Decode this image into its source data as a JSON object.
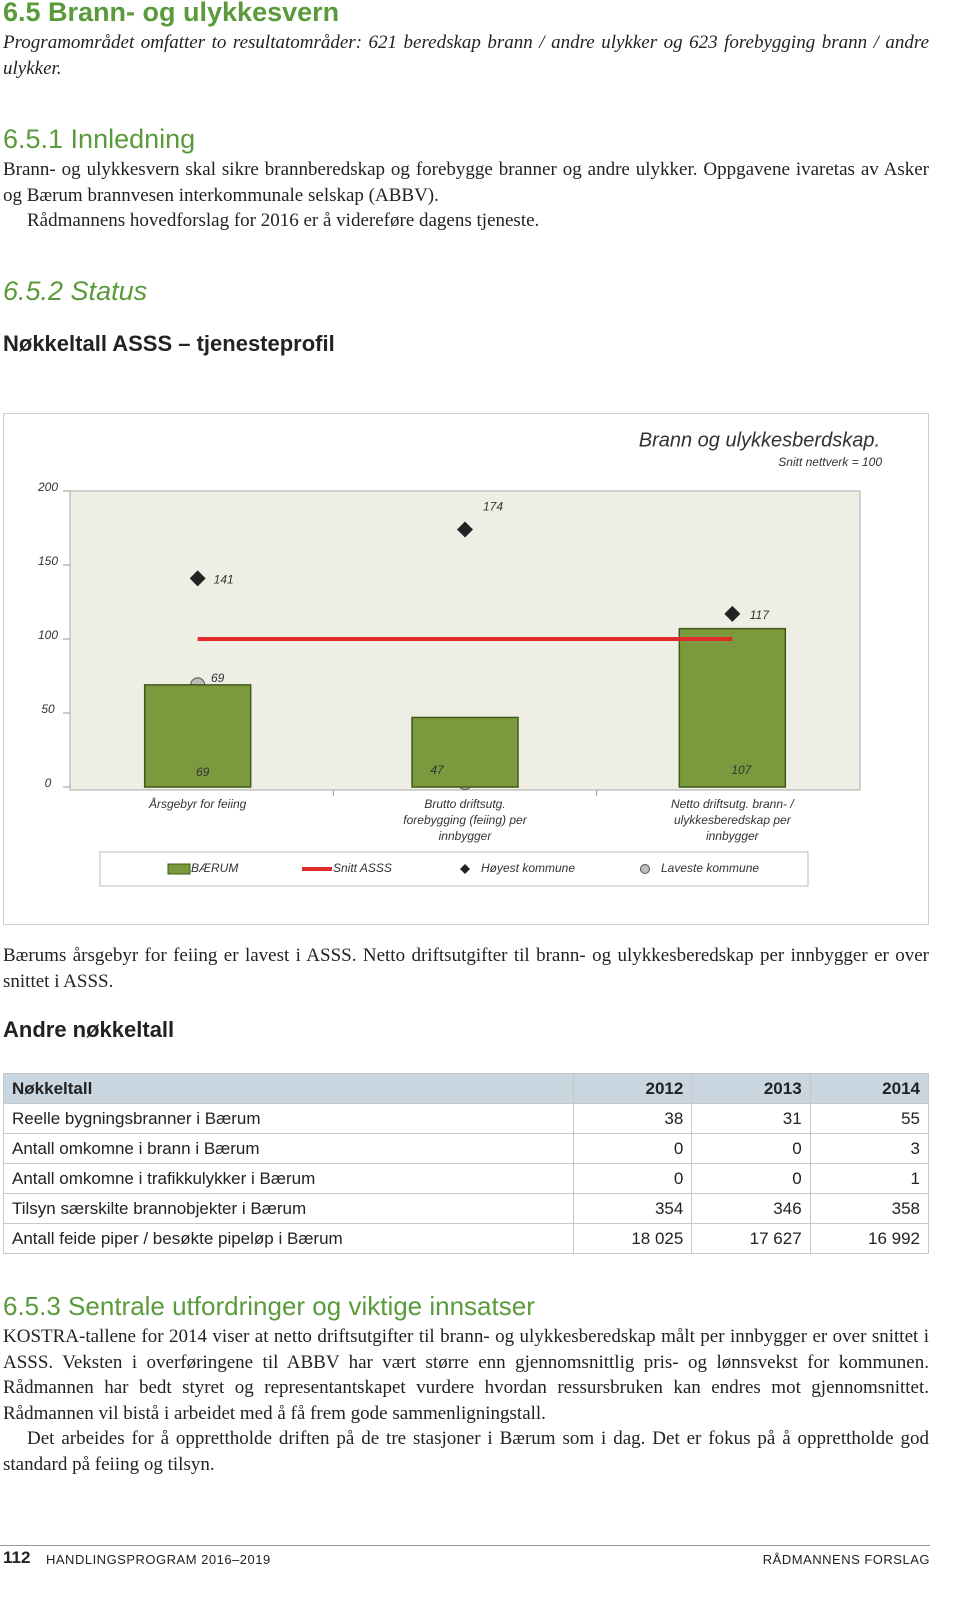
{
  "heading": "6.5 Brann- og ulykkesvern",
  "intro": "Programområdet omfatter to resultatområder: 621 beredskap brann / andre ulykker og 623 forebygging brann / andre ulykker.",
  "section1": {
    "title": "6.5.1 Innledning",
    "paragraphs": [
      "Brann- og ulykkesvern skal sikre brannberedskap og forebygge branner og andre ulykker. Oppgavene ivaretas av Asker og Bærum brannvesen interkommunale selskap (ABBV).",
      "Rådmannens hovedforslag for 2016 er å videreføre dagens tjeneste."
    ]
  },
  "section2": {
    "title": "6.5.2 Status",
    "subtitle": "Nøkkeltall ASSS – tjenesteprofil"
  },
  "chart_data": {
    "type": "bar",
    "title": "Brann og ulykkesberdskap.",
    "subtitle": "Snitt nettverk = 100",
    "categories": [
      "Årsgebyr for feiing",
      "Brutto driftsutg. forebygging (feiing) per innbygger",
      "Netto driftsutg. brann- / ulykkesberedskap per innbygger"
    ],
    "ylim": [
      0,
      200
    ],
    "yticks": [
      0,
      50,
      100,
      150,
      200
    ],
    "grid": false,
    "series": [
      {
        "name": "BÆRUM",
        "type": "bar",
        "color": "#7b9a3d",
        "values": [
          69,
          47,
          107
        ]
      },
      {
        "name": "Snitt ASSS",
        "type": "line",
        "color": "#e02b2b",
        "values": [
          100,
          100,
          100
        ]
      },
      {
        "name": "Høyest kommune",
        "type": "diamond",
        "color": "#222222",
        "values": [
          141,
          174,
          117
        ]
      },
      {
        "name": "Laveste kommune",
        "type": "circle",
        "color": "#bdbdbd",
        "values": [
          69,
          3,
          69
        ]
      }
    ]
  },
  "after_chart": "Bærums årsgebyr for feiing er lavest i ASSS. Netto driftsutgifter til brann- og ulykkesberedskap per innbygger er over snittet i ASSS.",
  "table": {
    "title": "Andre nøkkeltall",
    "header": [
      "Nøkkeltall",
      "2012",
      "2013",
      "2014"
    ],
    "rows": [
      [
        "Reelle bygningsbranner i Bærum",
        "38",
        "31",
        "55"
      ],
      [
        "Antall omkomne i brann i Bærum",
        "0",
        "0",
        "3"
      ],
      [
        "Antall omkomne i trafikkulykker i Bærum",
        "0",
        "0",
        "1"
      ],
      [
        "Tilsyn særskilte brannobjekter i Bærum",
        "354",
        "346",
        "358"
      ],
      [
        "Antall feide piper / besøkte pipeløp i Bærum",
        "18 025",
        "17 627",
        "16 992"
      ]
    ]
  },
  "section3": {
    "title": "6.5.3 Sentrale utfordringer og viktige innsatser",
    "paragraphs": [
      "KOSTRA-tallene for 2014 viser at netto driftsutgifter til brann- og ulykkesberedskap målt per innbygger er over snittet i ASSS. Veksten i overføringene til ABBV har vært større enn gjennomsnittlig pris- og lønnsvekst for kommunen. Rådmannen har bedt styret og representantskapet vurdere hvordan ressursbruken kan endres mot gjennomsnittet. Rådmannen vil bistå i arbeidet med å få frem gode sammenligningstall.",
      "Det arbeides for å opprettholde driften på de tre stasjoner i Bærum som i dag. Det er fokus på å opprettholde god standard på feiing og tilsyn."
    ]
  },
  "footer": {
    "page": "112",
    "left": "HANDLINGSPROGRAM 2016–2019",
    "right": "RÅDMANNENS FORSLAG"
  }
}
